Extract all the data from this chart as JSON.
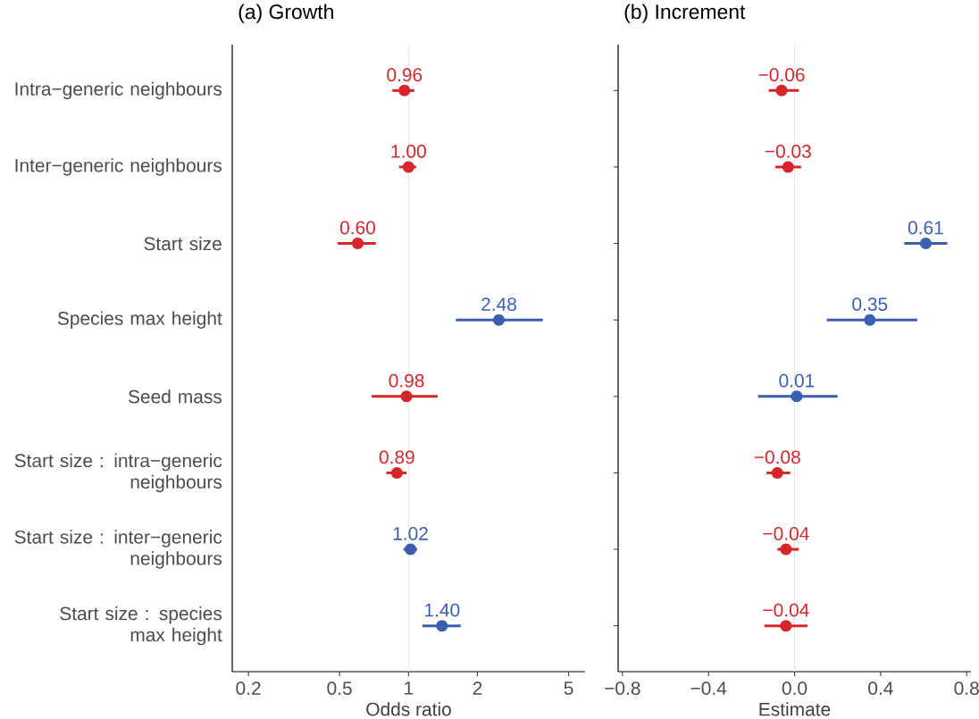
{
  "chart_data": [
    {
      "type": "scatter",
      "title": "(a) Growth",
      "xlabel": "Odds ratio",
      "orientation": "horizontal",
      "log": "x",
      "marker": "circle",
      "categories": [
        "Intra−generic neighbours",
        "Inter−generic neighbours",
        "Start size",
        "Species max height",
        "Seed mass",
        "Start size : intra−generic neighbours",
        "Start size : inter−generic neighbours",
        "Start size : species max height"
      ],
      "values": [
        0.96,
        1.0,
        0.6,
        2.48,
        0.98,
        0.89,
        1.02,
        1.4
      ],
      "errors": [
        [
          0.85,
          1.06
        ],
        [
          0.91,
          1.08
        ],
        [
          0.49,
          0.72
        ],
        [
          1.61,
          3.86
        ],
        [
          0.69,
          1.34
        ],
        [
          0.8,
          0.98
        ],
        [
          0.95,
          1.09
        ],
        [
          1.15,
          1.69
        ]
      ],
      "value_labels": [
        "0.96",
        "1.00",
        "0.60",
        "2.48",
        "0.98",
        "0.89",
        "1.02",
        "1.40"
      ],
      "colors": [
        "#d7262b",
        "#d7262b",
        "#d7262b",
        "#3b5fae",
        "#d7262b",
        "#d7262b",
        "#3b5fae",
        "#3b5fae"
      ],
      "xlim": [
        0.17,
        5.9
      ],
      "xticks": [
        0.2,
        0.5,
        1,
        2,
        5
      ],
      "ref_lines": [
        {
          "axis": "x",
          "value": 1,
          "color": "#e6e6e6"
        }
      ]
    },
    {
      "type": "scatter",
      "title": "(b) Increment",
      "xlabel": "Estimate",
      "orientation": "horizontal",
      "marker": "circle",
      "tick_labels": "x",
      "categories": [
        null,
        null,
        null,
        null,
        null,
        null,
        null,
        null
      ],
      "values": [
        -0.06,
        -0.03,
        0.61,
        0.35,
        0.01,
        -0.08,
        -0.04,
        -0.04
      ],
      "errors": [
        [
          -0.12,
          0.02
        ],
        [
          -0.09,
          0.03
        ],
        [
          0.51,
          0.71
        ],
        [
          0.15,
          0.57
        ],
        [
          -0.17,
          0.2
        ],
        [
          -0.13,
          -0.02
        ],
        [
          -0.08,
          0.02
        ],
        [
          -0.14,
          0.06
        ]
      ],
      "value_labels": [
        "−0.06",
        "−0.03",
        "0.61",
        "0.35",
        "0.01",
        "−0.08",
        "−0.04",
        "−0.04"
      ],
      "colors": [
        "#d7262b",
        "#d7262b",
        "#3b5fae",
        "#3b5fae",
        "#3b5fae",
        "#d7262b",
        "#d7262b",
        "#d7262b"
      ],
      "xlim": [
        -0.82,
        0.82
      ],
      "xticks": [
        {
          "value": -0.8,
          "label": "−0.8"
        },
        {
          "value": -0.4,
          "label": "−0.4"
        },
        {
          "value": 0,
          "label": "0.0"
        },
        {
          "value": 0.4,
          "label": "0.4"
        },
        {
          "value": 0.8,
          "label": "0.8"
        }
      ],
      "ref_lines": [
        {
          "axis": "x",
          "value": 0,
          "color": "#e6e6e6"
        }
      ]
    }
  ]
}
